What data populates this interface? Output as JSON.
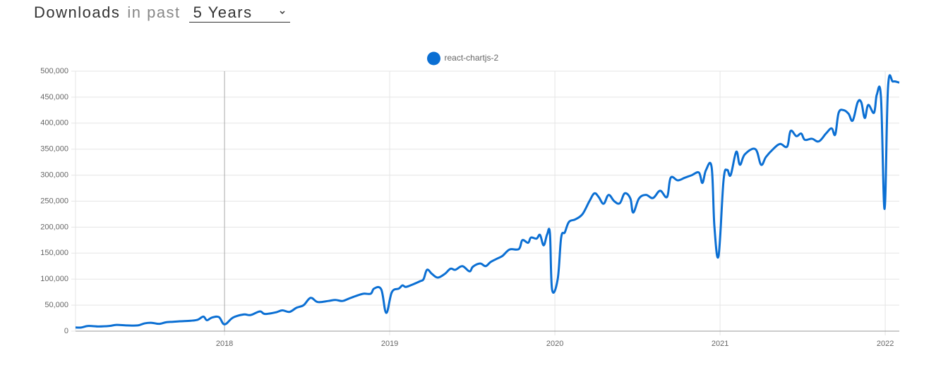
{
  "header": {
    "title": "Downloads",
    "range_prefix": "in past",
    "range_value": "5 Years"
  },
  "chart_data": {
    "type": "line",
    "x": [
      2017.098,
      2017.132,
      2017.175,
      2017.239,
      2017.303,
      2017.346,
      2017.41,
      2017.474,
      2017.517,
      2017.56,
      2017.603,
      2017.645,
      2017.688,
      2017.731,
      2017.795,
      2017.838,
      2017.872,
      2017.893,
      2017.923,
      2017.966,
      2018.0,
      2018.051,
      2018.115,
      2018.158,
      2018.214,
      2018.244,
      2018.308,
      2018.35,
      2018.393,
      2018.436,
      2018.479,
      2018.521,
      2018.564,
      2018.628,
      2018.671,
      2018.714,
      2018.756,
      2018.799,
      2018.842,
      2018.885,
      2018.906,
      2018.949,
      2018.979,
      2019.013,
      2019.056,
      2019.077,
      2019.098,
      2019.141,
      2019.184,
      2019.205,
      2019.226,
      2019.256,
      2019.291,
      2019.333,
      2019.368,
      2019.397,
      2019.44,
      2019.483,
      2019.504,
      2019.547,
      2019.581,
      2019.611,
      2019.654,
      2019.684,
      2019.726,
      2019.782,
      2019.803,
      2019.838,
      2019.855,
      2019.889,
      2019.91,
      2019.932,
      2019.953,
      2019.97,
      2019.983,
      2020.017,
      2020.038,
      2020.06,
      2020.085,
      2020.124,
      2020.167,
      2020.209,
      2020.239,
      2020.265,
      2020.295,
      2020.325,
      2020.359,
      2020.393,
      2020.423,
      2020.457,
      2020.474,
      2020.509,
      2020.551,
      2020.594,
      2020.637,
      2020.679,
      2020.701,
      2020.744,
      2020.786,
      2020.829,
      2020.872,
      2020.893,
      2020.915,
      2020.949,
      2020.966,
      2020.991,
      2021.021,
      2021.043,
      2021.064,
      2021.098,
      2021.12,
      2021.15,
      2021.214,
      2021.248,
      2021.278,
      2021.321,
      2021.363,
      2021.406,
      2021.427,
      2021.462,
      2021.491,
      2021.513,
      2021.556,
      2021.598,
      2021.641,
      2021.675,
      2021.697,
      2021.718,
      2021.748,
      2021.778,
      2021.803,
      2021.833,
      2021.855,
      2021.876,
      2021.897,
      2021.932,
      2021.949,
      2021.974,
      2021.996,
      2022.017,
      2022.047,
      2022.085
    ],
    "series": [
      {
        "name": "react-chartjs-2",
        "color": "#0b6fd3",
        "values": [
          7000,
          7000,
          10000,
          9000,
          10000,
          12000,
          11000,
          11000,
          15000,
          16000,
          14000,
          17000,
          18000,
          19000,
          20000,
          22000,
          28000,
          21000,
          26000,
          27000,
          13000,
          26000,
          32000,
          31000,
          38000,
          33000,
          36000,
          40000,
          37000,
          45000,
          50000,
          64000,
          56000,
          58000,
          60000,
          58000,
          63000,
          68000,
          72000,
          72000,
          82000,
          80000,
          35000,
          75000,
          82000,
          88000,
          85000,
          90000,
          96000,
          100000,
          118000,
          110000,
          103000,
          110000,
          120000,
          118000,
          125000,
          115000,
          124000,
          130000,
          125000,
          133000,
          140000,
          145000,
          157000,
          158000,
          175000,
          170000,
          180000,
          178000,
          185000,
          165000,
          186000,
          188000,
          80000,
          100000,
          180000,
          190000,
          210000,
          215000,
          225000,
          250000,
          265000,
          258000,
          245000,
          262000,
          250000,
          246000,
          265000,
          255000,
          228000,
          255000,
          262000,
          256000,
          270000,
          258000,
          295000,
          290000,
          295000,
          300000,
          305000,
          285000,
          310000,
          315000,
          200000,
          145000,
          290000,
          310000,
          300000,
          345000,
          320000,
          340000,
          350000,
          320000,
          335000,
          350000,
          360000,
          355000,
          385000,
          375000,
          380000,
          368000,
          370000,
          365000,
          380000,
          390000,
          378000,
          420000,
          425000,
          418000,
          405000,
          440000,
          440000,
          410000,
          435000,
          420000,
          455000,
          450000,
          235000,
          470000,
          480000,
          478000
        ]
      }
    ],
    "xlim": [
      2017.098,
      2022.085
    ],
    "xticks": [
      2018,
      2019,
      2020,
      2021,
      2022
    ],
    "ylim": [
      0,
      500000
    ],
    "yticks": [
      0,
      {
        "value": 50000,
        "label": "50,000"
      },
      {
        "value": 100000,
        "label": "100,000"
      },
      {
        "value": 150000,
        "label": "150,000"
      },
      {
        "value": 200000,
        "label": "200,000"
      },
      {
        "value": 250000,
        "label": "250,000"
      },
      {
        "value": 300000,
        "label": "300,000"
      },
      {
        "value": 350000,
        "label": "350,000"
      },
      {
        "value": 400000,
        "label": "400,000"
      },
      {
        "value": 450000,
        "label": "450,000"
      },
      {
        "value": 500000,
        "label": "500,000"
      }
    ],
    "grid": true,
    "legend": "top"
  }
}
